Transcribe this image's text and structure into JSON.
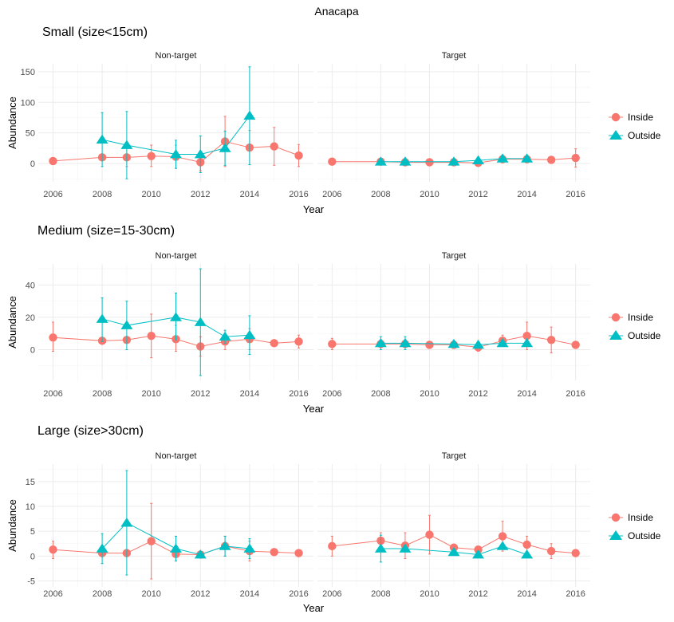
{
  "figure_title": "Anacapa",
  "colors": {
    "Inside": "#F8766D",
    "Outside": "#00BFC4"
  },
  "legend": [
    "Inside",
    "Outside"
  ],
  "chart_data": [
    {
      "type": "scatter",
      "title": "Small (size<15cm)",
      "xlabel": "Year",
      "ylabel": "Abundance",
      "xlim": [
        2005.4,
        2016.6
      ],
      "ylim": [
        -30,
        163
      ],
      "yticks": [
        0,
        50,
        100,
        150
      ],
      "xticks": [
        2006,
        2008,
        2010,
        2012,
        2014,
        2016
      ],
      "grid": true,
      "legend_position": "right",
      "panels": [
        {
          "facet": "Non-target",
          "series": [
            {
              "name": "Inside",
              "points": [
                {
                  "x": 2006,
                  "y": 4,
                  "lo": 4,
                  "hi": 4
                },
                {
                  "x": 2008,
                  "y": 10,
                  "lo": 10,
                  "hi": 10
                },
                {
                  "x": 2009,
                  "y": 10,
                  "lo": -5,
                  "hi": 25
                },
                {
                  "x": 2010,
                  "y": 12,
                  "lo": -5,
                  "hi": 30
                },
                {
                  "x": 2011,
                  "y": 11,
                  "lo": -8,
                  "hi": 30
                },
                {
                  "x": 2012,
                  "y": 2,
                  "lo": -12,
                  "hi": 16
                },
                {
                  "x": 2013,
                  "y": 36,
                  "lo": -5,
                  "hi": 77
                },
                {
                  "x": 2014,
                  "y": 26,
                  "lo": -2,
                  "hi": 54
                },
                {
                  "x": 2015,
                  "y": 28,
                  "lo": -3,
                  "hi": 59
                },
                {
                  "x": 2016,
                  "y": 13,
                  "lo": -5,
                  "hi": 31
                }
              ]
            },
            {
              "name": "Outside",
              "points": [
                {
                  "x": 2008,
                  "y": 39,
                  "lo": -5,
                  "hi": 83
                },
                {
                  "x": 2009,
                  "y": 30,
                  "lo": -25,
                  "hi": 85
                },
                {
                  "x": 2011,
                  "y": 15,
                  "lo": -8,
                  "hi": 38
                },
                {
                  "x": 2012,
                  "y": 15,
                  "lo": -15,
                  "hi": 45
                },
                {
                  "x": 2013,
                  "y": 25,
                  "lo": -3,
                  "hi": 53
                },
                {
                  "x": 2014,
                  "y": 78,
                  "lo": -2,
                  "hi": 158
                }
              ]
            }
          ]
        },
        {
          "facet": "Target",
          "series": [
            {
              "name": "Inside",
              "points": [
                {
                  "x": 2006,
                  "y": 3,
                  "lo": 3,
                  "hi": 3
                },
                {
                  "x": 2008,
                  "y": 3,
                  "lo": 3,
                  "hi": 3
                },
                {
                  "x": 2009,
                  "y": 2,
                  "lo": 2,
                  "hi": 2
                },
                {
                  "x": 2010,
                  "y": 2,
                  "lo": 2,
                  "hi": 2
                },
                {
                  "x": 2011,
                  "y": 2,
                  "lo": 2,
                  "hi": 2
                },
                {
                  "x": 2012,
                  "y": 1,
                  "lo": -3,
                  "hi": 5
                },
                {
                  "x": 2013,
                  "y": 7,
                  "lo": 2,
                  "hi": 12
                },
                {
                  "x": 2014,
                  "y": 7,
                  "lo": 2,
                  "hi": 12
                },
                {
                  "x": 2015,
                  "y": 6,
                  "lo": 6,
                  "hi": 6
                },
                {
                  "x": 2016,
                  "y": 9,
                  "lo": -6,
                  "hi": 24
                }
              ]
            },
            {
              "name": "Outside",
              "points": [
                {
                  "x": 2008,
                  "y": 3,
                  "lo": 3,
                  "hi": 3
                },
                {
                  "x": 2009,
                  "y": 3,
                  "lo": 3,
                  "hi": 3
                },
                {
                  "x": 2011,
                  "y": 3,
                  "lo": 3,
                  "hi": 3
                },
                {
                  "x": 2012,
                  "y": 5,
                  "lo": 1,
                  "hi": 9
                },
                {
                  "x": 2013,
                  "y": 8,
                  "lo": 3,
                  "hi": 13
                },
                {
                  "x": 2014,
                  "y": 8,
                  "lo": 3,
                  "hi": 13
                }
              ]
            }
          ]
        }
      ]
    },
    {
      "type": "scatter",
      "title": "Medium (size=15-30cm)",
      "xlabel": "Year",
      "ylabel": "Abundance",
      "xlim": [
        2005.4,
        2016.6
      ],
      "ylim": [
        -19,
        53
      ],
      "yticks": [
        0,
        20,
        40
      ],
      "xticks": [
        2006,
        2008,
        2010,
        2012,
        2014,
        2016
      ],
      "grid": true,
      "legend_position": "right",
      "panels": [
        {
          "facet": "Non-target",
          "series": [
            {
              "name": "Inside",
              "points": [
                {
                  "x": 2006,
                  "y": 7.5,
                  "lo": -1,
                  "hi": 17
                },
                {
                  "x": 2008,
                  "y": 5.5,
                  "lo": 5.5,
                  "hi": 5.5
                },
                {
                  "x": 2009,
                  "y": 6,
                  "lo": 6,
                  "hi": 6
                },
                {
                  "x": 2010,
                  "y": 8.5,
                  "lo": -5,
                  "hi": 22
                },
                {
                  "x": 2011,
                  "y": 6.5,
                  "lo": -1,
                  "hi": 15
                },
                {
                  "x": 2012,
                  "y": 2,
                  "lo": -4,
                  "hi": 8
                },
                {
                  "x": 2013,
                  "y": 5,
                  "lo": 0,
                  "hi": 10
                },
                {
                  "x": 2014,
                  "y": 6.5,
                  "lo": 0,
                  "hi": 13
                },
                {
                  "x": 2015,
                  "y": 4,
                  "lo": 4,
                  "hi": 4
                },
                {
                  "x": 2016,
                  "y": 5,
                  "lo": 1,
                  "hi": 9
                }
              ]
            },
            {
              "name": "Outside",
              "points": [
                {
                  "x": 2008,
                  "y": 19,
                  "lo": 5,
                  "hi": 32
                },
                {
                  "x": 2009,
                  "y": 15,
                  "lo": 0,
                  "hi": 30
                },
                {
                  "x": 2011,
                  "y": 20,
                  "lo": 6,
                  "hi": 35
                },
                {
                  "x": 2012,
                  "y": 17,
                  "lo": -16,
                  "hi": 50
                },
                {
                  "x": 2013,
                  "y": 8,
                  "lo": 4,
                  "hi": 12
                },
                {
                  "x": 2014,
                  "y": 9,
                  "lo": -3,
                  "hi": 21
                }
              ]
            }
          ]
        },
        {
          "facet": "Target",
          "series": [
            {
              "name": "Inside",
              "points": [
                {
                  "x": 2006,
                  "y": 3.5,
                  "lo": 0,
                  "hi": 7
                },
                {
                  "x": 2008,
                  "y": 3.5,
                  "lo": 3.5,
                  "hi": 3.5
                },
                {
                  "x": 2009,
                  "y": 3.5,
                  "lo": 3.5,
                  "hi": 3.5
                },
                {
                  "x": 2010,
                  "y": 3,
                  "lo": 3,
                  "hi": 3
                },
                {
                  "x": 2011,
                  "y": 3,
                  "lo": 3,
                  "hi": 3
                },
                {
                  "x": 2012,
                  "y": 1.5,
                  "lo": -1,
                  "hi": 4
                },
                {
                  "x": 2013,
                  "y": 5.5,
                  "lo": 2,
                  "hi": 9
                },
                {
                  "x": 2014,
                  "y": 8.5,
                  "lo": 0,
                  "hi": 17
                },
                {
                  "x": 2015,
                  "y": 6,
                  "lo": -2,
                  "hi": 14
                },
                {
                  "x": 2016,
                  "y": 3,
                  "lo": 3,
                  "hi": 3
                }
              ]
            },
            {
              "name": "Outside",
              "points": [
                {
                  "x": 2008,
                  "y": 4,
                  "lo": 0,
                  "hi": 8
                },
                {
                  "x": 2009,
                  "y": 4,
                  "lo": 0,
                  "hi": 8
                },
                {
                  "x": 2011,
                  "y": 3.5,
                  "lo": 3.5,
                  "hi": 3.5
                },
                {
                  "x": 2012,
                  "y": 3,
                  "lo": 3,
                  "hi": 3
                },
                {
                  "x": 2013,
                  "y": 4,
                  "lo": 4,
                  "hi": 4
                },
                {
                  "x": 2014,
                  "y": 4,
                  "lo": 4,
                  "hi": 4
                }
              ]
            }
          ]
        }
      ]
    },
    {
      "type": "scatter",
      "title": "Large (size>30cm)",
      "xlabel": "Year",
      "ylabel": "Abundance",
      "xlim": [
        2005.4,
        2016.6
      ],
      "ylim": [
        -6.2,
        18.5
      ],
      "yticks": [
        -5,
        0,
        5,
        10,
        15
      ],
      "xticks": [
        2006,
        2008,
        2010,
        2012,
        2014,
        2016
      ],
      "grid": true,
      "legend_position": "right",
      "panels": [
        {
          "facet": "Non-target",
          "series": [
            {
              "name": "Inside",
              "points": [
                {
                  "x": 2006,
                  "y": 1.3,
                  "lo": -0.5,
                  "hi": 3
                },
                {
                  "x": 2008,
                  "y": 0.6,
                  "lo": 0.6,
                  "hi": 0.6
                },
                {
                  "x": 2009,
                  "y": 0.6,
                  "lo": 0.6,
                  "hi": 0.6
                },
                {
                  "x": 2010,
                  "y": 3,
                  "lo": -4.6,
                  "hi": 10.6
                },
                {
                  "x": 2011,
                  "y": 0.4,
                  "lo": 0.4,
                  "hi": 0.4
                },
                {
                  "x": 2012,
                  "y": 0.3,
                  "lo": 0.3,
                  "hi": 0.3
                },
                {
                  "x": 2013,
                  "y": 2,
                  "lo": 0,
                  "hi": 4
                },
                {
                  "x": 2014,
                  "y": 1,
                  "lo": -1,
                  "hi": 3
                },
                {
                  "x": 2015,
                  "y": 0.8,
                  "lo": 0.8,
                  "hi": 0.8
                },
                {
                  "x": 2016,
                  "y": 0.6,
                  "lo": 0.6,
                  "hi": 0.6
                }
              ]
            },
            {
              "name": "Outside",
              "points": [
                {
                  "x": 2008,
                  "y": 1.5,
                  "lo": -1.5,
                  "hi": 4.5
                },
                {
                  "x": 2009,
                  "y": 6.7,
                  "lo": -3.8,
                  "hi": 17.2
                },
                {
                  "x": 2011,
                  "y": 1.5,
                  "lo": -1,
                  "hi": 4
                },
                {
                  "x": 2012,
                  "y": 0.3,
                  "lo": 0.3,
                  "hi": 0.3
                },
                {
                  "x": 2013,
                  "y": 2,
                  "lo": 0,
                  "hi": 4
                },
                {
                  "x": 2014,
                  "y": 1.5,
                  "lo": -0.5,
                  "hi": 3.5
                }
              ]
            }
          ]
        },
        {
          "facet": "Target",
          "series": [
            {
              "name": "Inside",
              "points": [
                {
                  "x": 2006,
                  "y": 2,
                  "lo": 0,
                  "hi": 4
                },
                {
                  "x": 2008,
                  "y": 3.1,
                  "lo": 1.5,
                  "hi": 4.7
                },
                {
                  "x": 2009,
                  "y": 2.1,
                  "lo": -0.5,
                  "hi": 4.7
                },
                {
                  "x": 2010,
                  "y": 4.3,
                  "lo": 0.4,
                  "hi": 8.2
                },
                {
                  "x": 2011,
                  "y": 1.7,
                  "lo": 1.7,
                  "hi": 1.7
                },
                {
                  "x": 2012,
                  "y": 1.3,
                  "lo": 1.3,
                  "hi": 1.3
                },
                {
                  "x": 2013,
                  "y": 4,
                  "lo": 1,
                  "hi": 7
                },
                {
                  "x": 2014,
                  "y": 2.3,
                  "lo": 0.6,
                  "hi": 4
                },
                {
                  "x": 2015,
                  "y": 1,
                  "lo": -0.5,
                  "hi": 2.5
                },
                {
                  "x": 2016,
                  "y": 0.6,
                  "lo": 0.6,
                  "hi": 0.6
                }
              ]
            },
            {
              "name": "Outside",
              "points": [
                {
                  "x": 2008,
                  "y": 1.5,
                  "lo": -1.2,
                  "hi": 4.2
                },
                {
                  "x": 2009,
                  "y": 1.5,
                  "lo": 1.5,
                  "hi": 1.5
                },
                {
                  "x": 2011,
                  "y": 0.8,
                  "lo": 0.8,
                  "hi": 0.8
                },
                {
                  "x": 2012,
                  "y": 0.3,
                  "lo": 0.3,
                  "hi": 0.3
                },
                {
                  "x": 2013,
                  "y": 2,
                  "lo": 2,
                  "hi": 2
                },
                {
                  "x": 2014,
                  "y": 0.3,
                  "lo": 0.3,
                  "hi": 0.3
                }
              ]
            }
          ]
        }
      ]
    }
  ]
}
